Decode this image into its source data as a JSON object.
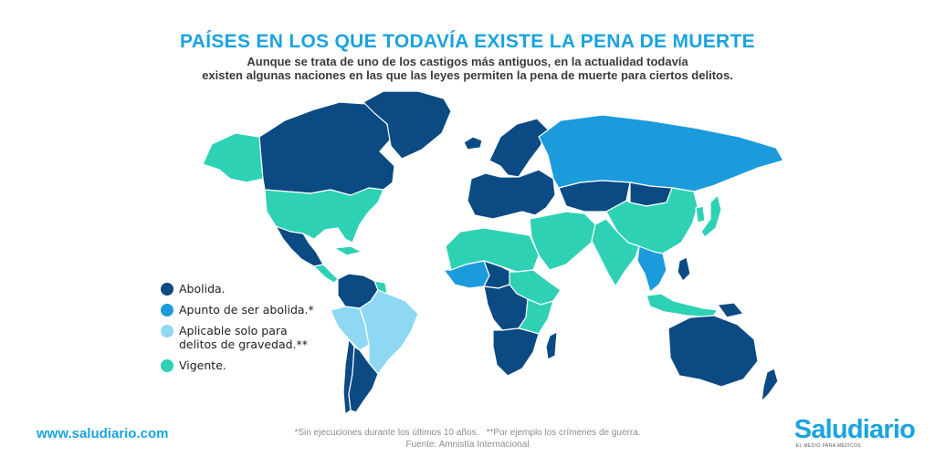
{
  "title": "PAÍSES EN LOS QUE TODAVÍA EXISTE LA PENA DE MUERTE",
  "subtitle": {
    "line1": "Aunque se trata de uno de los castigos más antiguos, en la actualidad todavía",
    "line2": "existen algunas naciones en las que las leyes permiten la pena de muerte para ciertos delitos."
  },
  "colors": {
    "abolida": "#0b4a83",
    "apunto": "#1c9bdc",
    "aplicable": "#8ed8f4",
    "vigente": "#2fd1b4",
    "border": "#ffffff",
    "accent": "#1aa3e0"
  },
  "legend": [
    {
      "key": "abolida",
      "label": "Abolida."
    },
    {
      "key": "apunto",
      "label": "Apunto de ser abolida.*"
    },
    {
      "key": "aplicable",
      "label": "Aplicable solo para\ndelitos de gravedad.**"
    },
    {
      "key": "vigente",
      "label": "Vigente."
    }
  ],
  "regions": {
    "canada": "abolida",
    "alaska": "vigente",
    "greenland": "abolida",
    "iceland": "abolida",
    "usa": "vigente",
    "mexico": "abolida",
    "cuba": "vigente",
    "central_america": "vigente",
    "colombia_venezuela": "abolida",
    "guyanas": "vigente",
    "peru_bolivia": "aplicable",
    "brazil": "aplicable",
    "chile": "abolida",
    "argentina": "abolida",
    "scandinavia": "abolida",
    "europe": "abolida",
    "russia": "apunto",
    "kazakhstan": "abolida",
    "mongolia": "abolida",
    "china": "vigente",
    "japan": "vigente",
    "korea": "vigente",
    "middle_east": "vigente",
    "india": "vigente",
    "southeast_asia": "apunto",
    "indonesia": "vigente",
    "philippines": "abolida",
    "west_africa": "apunto",
    "mali_niger": "abolida",
    "north_africa": "vigente",
    "sahel_east": "vigente",
    "central_africa": "abolida",
    "east_africa": "vigente",
    "southern_africa": "abolida",
    "madagascar": "abolida",
    "australia": "abolida",
    "new_zealand": "abolida",
    "papua": "abolida"
  },
  "footer": {
    "website": "www.saludiario.com",
    "note1": "*Sin ejecuciones durante los últimos 10 años.",
    "note2": "**Por ejemplo los crímenes de guerra.",
    "source": "Fuente: Amnistía Internacional",
    "logo": "Saludiario",
    "tagline": "EL MEDIO PARA MÉDICOS"
  }
}
